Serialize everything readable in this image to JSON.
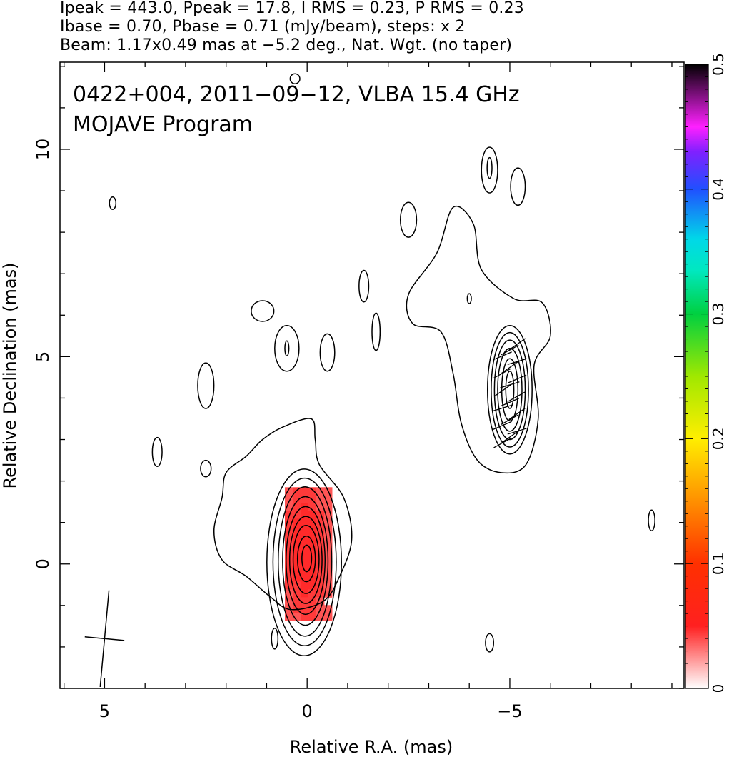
{
  "header": {
    "line1": "Ipeak = 443.0, Ppeak = 17.8, I RMS = 0.23, P RMS = 0.23",
    "line2": "Ibase = 0.70, Pbase = 0.71 (mJy/beam), steps: x 2",
    "line3": "Beam: 1.17x0.49 mas at −5.2 deg., Nat. Wgt. (no taper)"
  },
  "chart_data": {
    "type": "heatmap",
    "title_lines": [
      "0422+004, 2011−09−12, VLBA 15.4 GHz",
      "MOJAVE Program"
    ],
    "xlabel": "Relative R.A. (mas)",
    "ylabel": "Relative Declination (mas)",
    "xlim": [
      6.1,
      -9.3
    ],
    "ylim": [
      -3.0,
      12.1
    ],
    "x_ticks": [
      5,
      0,
      -5
    ],
    "x_tick_labels": [
      "5",
      "0",
      "−5"
    ],
    "y_ticks": [
      0,
      5,
      10
    ],
    "y_tick_labels": [
      "0",
      "5",
      "10"
    ],
    "colorbar": {
      "range": [
        0,
        0.5
      ],
      "ticks": [
        0,
        0.1,
        0.2,
        0.3,
        0.4,
        0.5
      ],
      "tick_labels": [
        "0",
        "0.1",
        "0.2",
        "0.3",
        "0.4",
        "0.5"
      ]
    },
    "core": {
      "center": [
        0.0,
        0.15
      ],
      "contour_semi_axes": [
        [
          0.12,
          0.32
        ],
        [
          0.22,
          0.55
        ],
        [
          0.32,
          0.82
        ],
        [
          0.4,
          1.05
        ],
        [
          0.48,
          1.3
        ],
        [
          0.56,
          1.55
        ],
        [
          0.66,
          1.8
        ],
        [
          0.78,
          2.02
        ],
        [
          0.92,
          2.25
        ]
      ],
      "polarization_patch": {
        "ra": [
          0.55,
          -0.45
        ],
        "dec": [
          -1.25,
          1.85
        ]
      }
    },
    "jet_component": {
      "center": [
        -5.0,
        4.2
      ],
      "contour_semi_axes": [
        [
          0.1,
          0.45
        ],
        [
          0.2,
          0.75
        ],
        [
          0.3,
          1.0
        ],
        [
          0.38,
          1.2
        ],
        [
          0.46,
          1.38
        ],
        [
          0.55,
          1.55
        ]
      ]
    },
    "outer_contours": {
      "core_envelope": [
        [
          -0.1,
          3.5
        ],
        [
          0.6,
          3.3
        ],
        [
          1.1,
          3.0
        ],
        [
          1.5,
          2.6
        ],
        [
          2.0,
          2.2
        ],
        [
          2.1,
          1.6
        ],
        [
          2.3,
          0.8
        ],
        [
          2.1,
          0.1
        ],
        [
          1.5,
          -0.3
        ],
        [
          0.9,
          -0.8
        ],
        [
          0.4,
          -1.1
        ],
        [
          -0.4,
          -0.9
        ],
        [
          -0.8,
          -0.3
        ],
        [
          -1.1,
          0.6
        ],
        [
          -0.9,
          1.6
        ],
        [
          -0.3,
          2.4
        ],
        [
          -0.2,
          3.0
        ]
      ],
      "jet_envelope": [
        [
          -3.6,
          8.6
        ],
        [
          -3.2,
          7.5
        ],
        [
          -2.5,
          6.5
        ],
        [
          -2.6,
          5.8
        ],
        [
          -3.3,
          5.6
        ],
        [
          -3.6,
          4.6
        ],
        [
          -3.8,
          3.4
        ],
        [
          -4.2,
          2.5
        ],
        [
          -4.8,
          2.2
        ],
        [
          -5.4,
          2.4
        ],
        [
          -5.7,
          3.5
        ],
        [
          -5.6,
          4.8
        ],
        [
          -6.0,
          5.5
        ],
        [
          -5.8,
          6.3
        ],
        [
          -5.1,
          6.4
        ],
        [
          -4.3,
          7.1
        ],
        [
          -4.1,
          8.2
        ]
      ]
    },
    "islands": [
      {
        "ra": 1.1,
        "dec": 6.1,
        "rx": 0.28,
        "ry": 0.25
      },
      {
        "ra": 0.5,
        "dec": 5.2,
        "rx": 0.3,
        "ry": 0.55
      },
      {
        "ra": 0.5,
        "dec": 5.2,
        "rx": 0.05,
        "ry": 0.18
      },
      {
        "ra": -0.5,
        "dec": 5.1,
        "rx": 0.18,
        "ry": 0.45
      },
      {
        "ra": 2.5,
        "dec": 4.3,
        "rx": 0.2,
        "ry": 0.55
      },
      {
        "ra": 3.7,
        "dec": 2.7,
        "rx": 0.12,
        "ry": 0.35
      },
      {
        "ra": 2.5,
        "dec": 2.3,
        "rx": 0.13,
        "ry": 0.2
      },
      {
        "ra": -1.4,
        "dec": 6.7,
        "rx": 0.12,
        "ry": 0.38
      },
      {
        "ra": -2.5,
        "dec": 8.3,
        "rx": 0.2,
        "ry": 0.42
      },
      {
        "ra": -4.5,
        "dec": 9.5,
        "rx": 0.2,
        "ry": 0.55
      },
      {
        "ra": -4.5,
        "dec": 9.55,
        "rx": 0.06,
        "ry": 0.25
      },
      {
        "ra": -5.2,
        "dec": 9.1,
        "rx": 0.18,
        "ry": 0.45
      },
      {
        "ra": -4.0,
        "dec": 6.4,
        "rx": 0.05,
        "ry": 0.12
      },
      {
        "ra": -1.7,
        "dec": 5.6,
        "rx": 0.1,
        "ry": 0.45
      },
      {
        "ra": 4.8,
        "dec": 8.7,
        "rx": 0.08,
        "ry": 0.15
      },
      {
        "ra": -4.5,
        "dec": -1.9,
        "rx": 0.1,
        "ry": 0.22
      },
      {
        "ra": 0.8,
        "dec": -1.8,
        "rx": 0.08,
        "ry": 0.25
      },
      {
        "ra": 0.3,
        "dec": 11.7,
        "rx": 0.12,
        "ry": 0.12
      },
      {
        "ra": -8.5,
        "dec": 1.05,
        "rx": 0.08,
        "ry": 0.25
      }
    ],
    "beam": {
      "ra": 5.0,
      "dec": -1.8,
      "major": 1.17,
      "minor": 0.49,
      "pa_deg": -5.2
    }
  }
}
